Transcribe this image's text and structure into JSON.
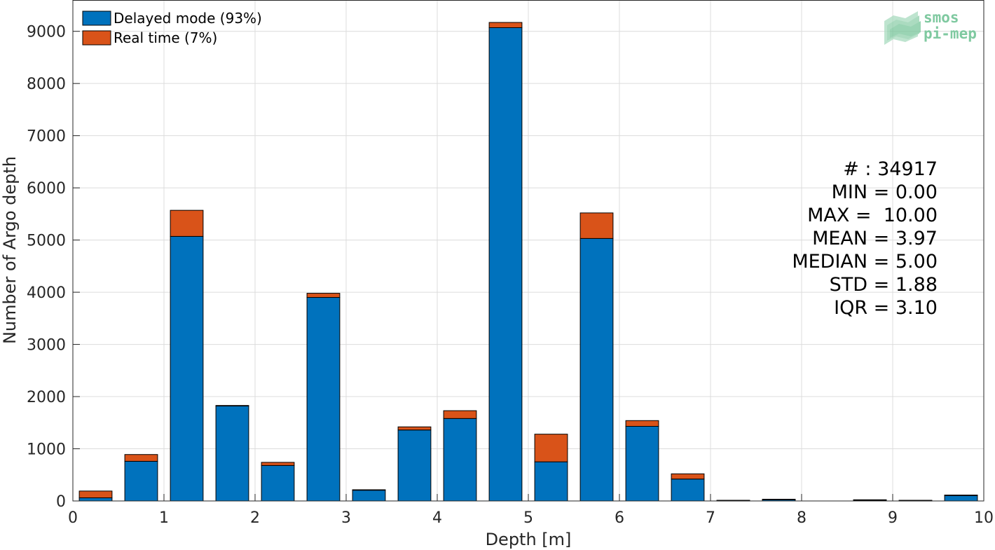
{
  "chart_data": {
    "type": "bar",
    "stacked": true,
    "xlabel": "Depth [m]",
    "ylabel": "Number of Argo depth",
    "xlim": [
      0,
      10
    ],
    "ylim": [
      0,
      9600
    ],
    "xticks": [
      0,
      1,
      2,
      3,
      4,
      5,
      6,
      7,
      8,
      9,
      10
    ],
    "yticks": [
      0,
      1000,
      2000,
      3000,
      4000,
      5000,
      6000,
      7000,
      8000,
      9000
    ],
    "grid": true,
    "legend_position": "top-left",
    "x": [
      0.25,
      0.75,
      1.25,
      1.75,
      2.25,
      2.75,
      3.25,
      3.75,
      4.25,
      4.75,
      5.25,
      5.75,
      6.25,
      6.75,
      7.25,
      7.75,
      8.25,
      8.75,
      9.25,
      9.75
    ],
    "series": [
      {
        "name": "Delayed mode (93%)",
        "color": "#0072BD",
        "values": [
          60,
          760,
          5070,
          1820,
          680,
          3900,
          210,
          1360,
          1580,
          9070,
          750,
          5030,
          1430,
          420,
          10,
          30,
          0,
          20,
          10,
          110
        ]
      },
      {
        "name": "Real time (7%)",
        "color": "#D95319",
        "values": [
          130,
          130,
          500,
          10,
          60,
          80,
          5,
          60,
          150,
          100,
          530,
          490,
          110,
          100,
          3,
          3,
          0,
          3,
          3,
          3
        ]
      }
    ],
    "annotations": [
      "# : 34917",
      "MIN = 0.00",
      "MAX =  10.00",
      "MEAN = 3.97",
      "MEDIAN = 5.00",
      "STD = 1.88",
      "IQR = 3.10"
    ]
  },
  "logo": {
    "line1": "smos",
    "line2": "pi-mep",
    "color": "#7fc9a0"
  }
}
